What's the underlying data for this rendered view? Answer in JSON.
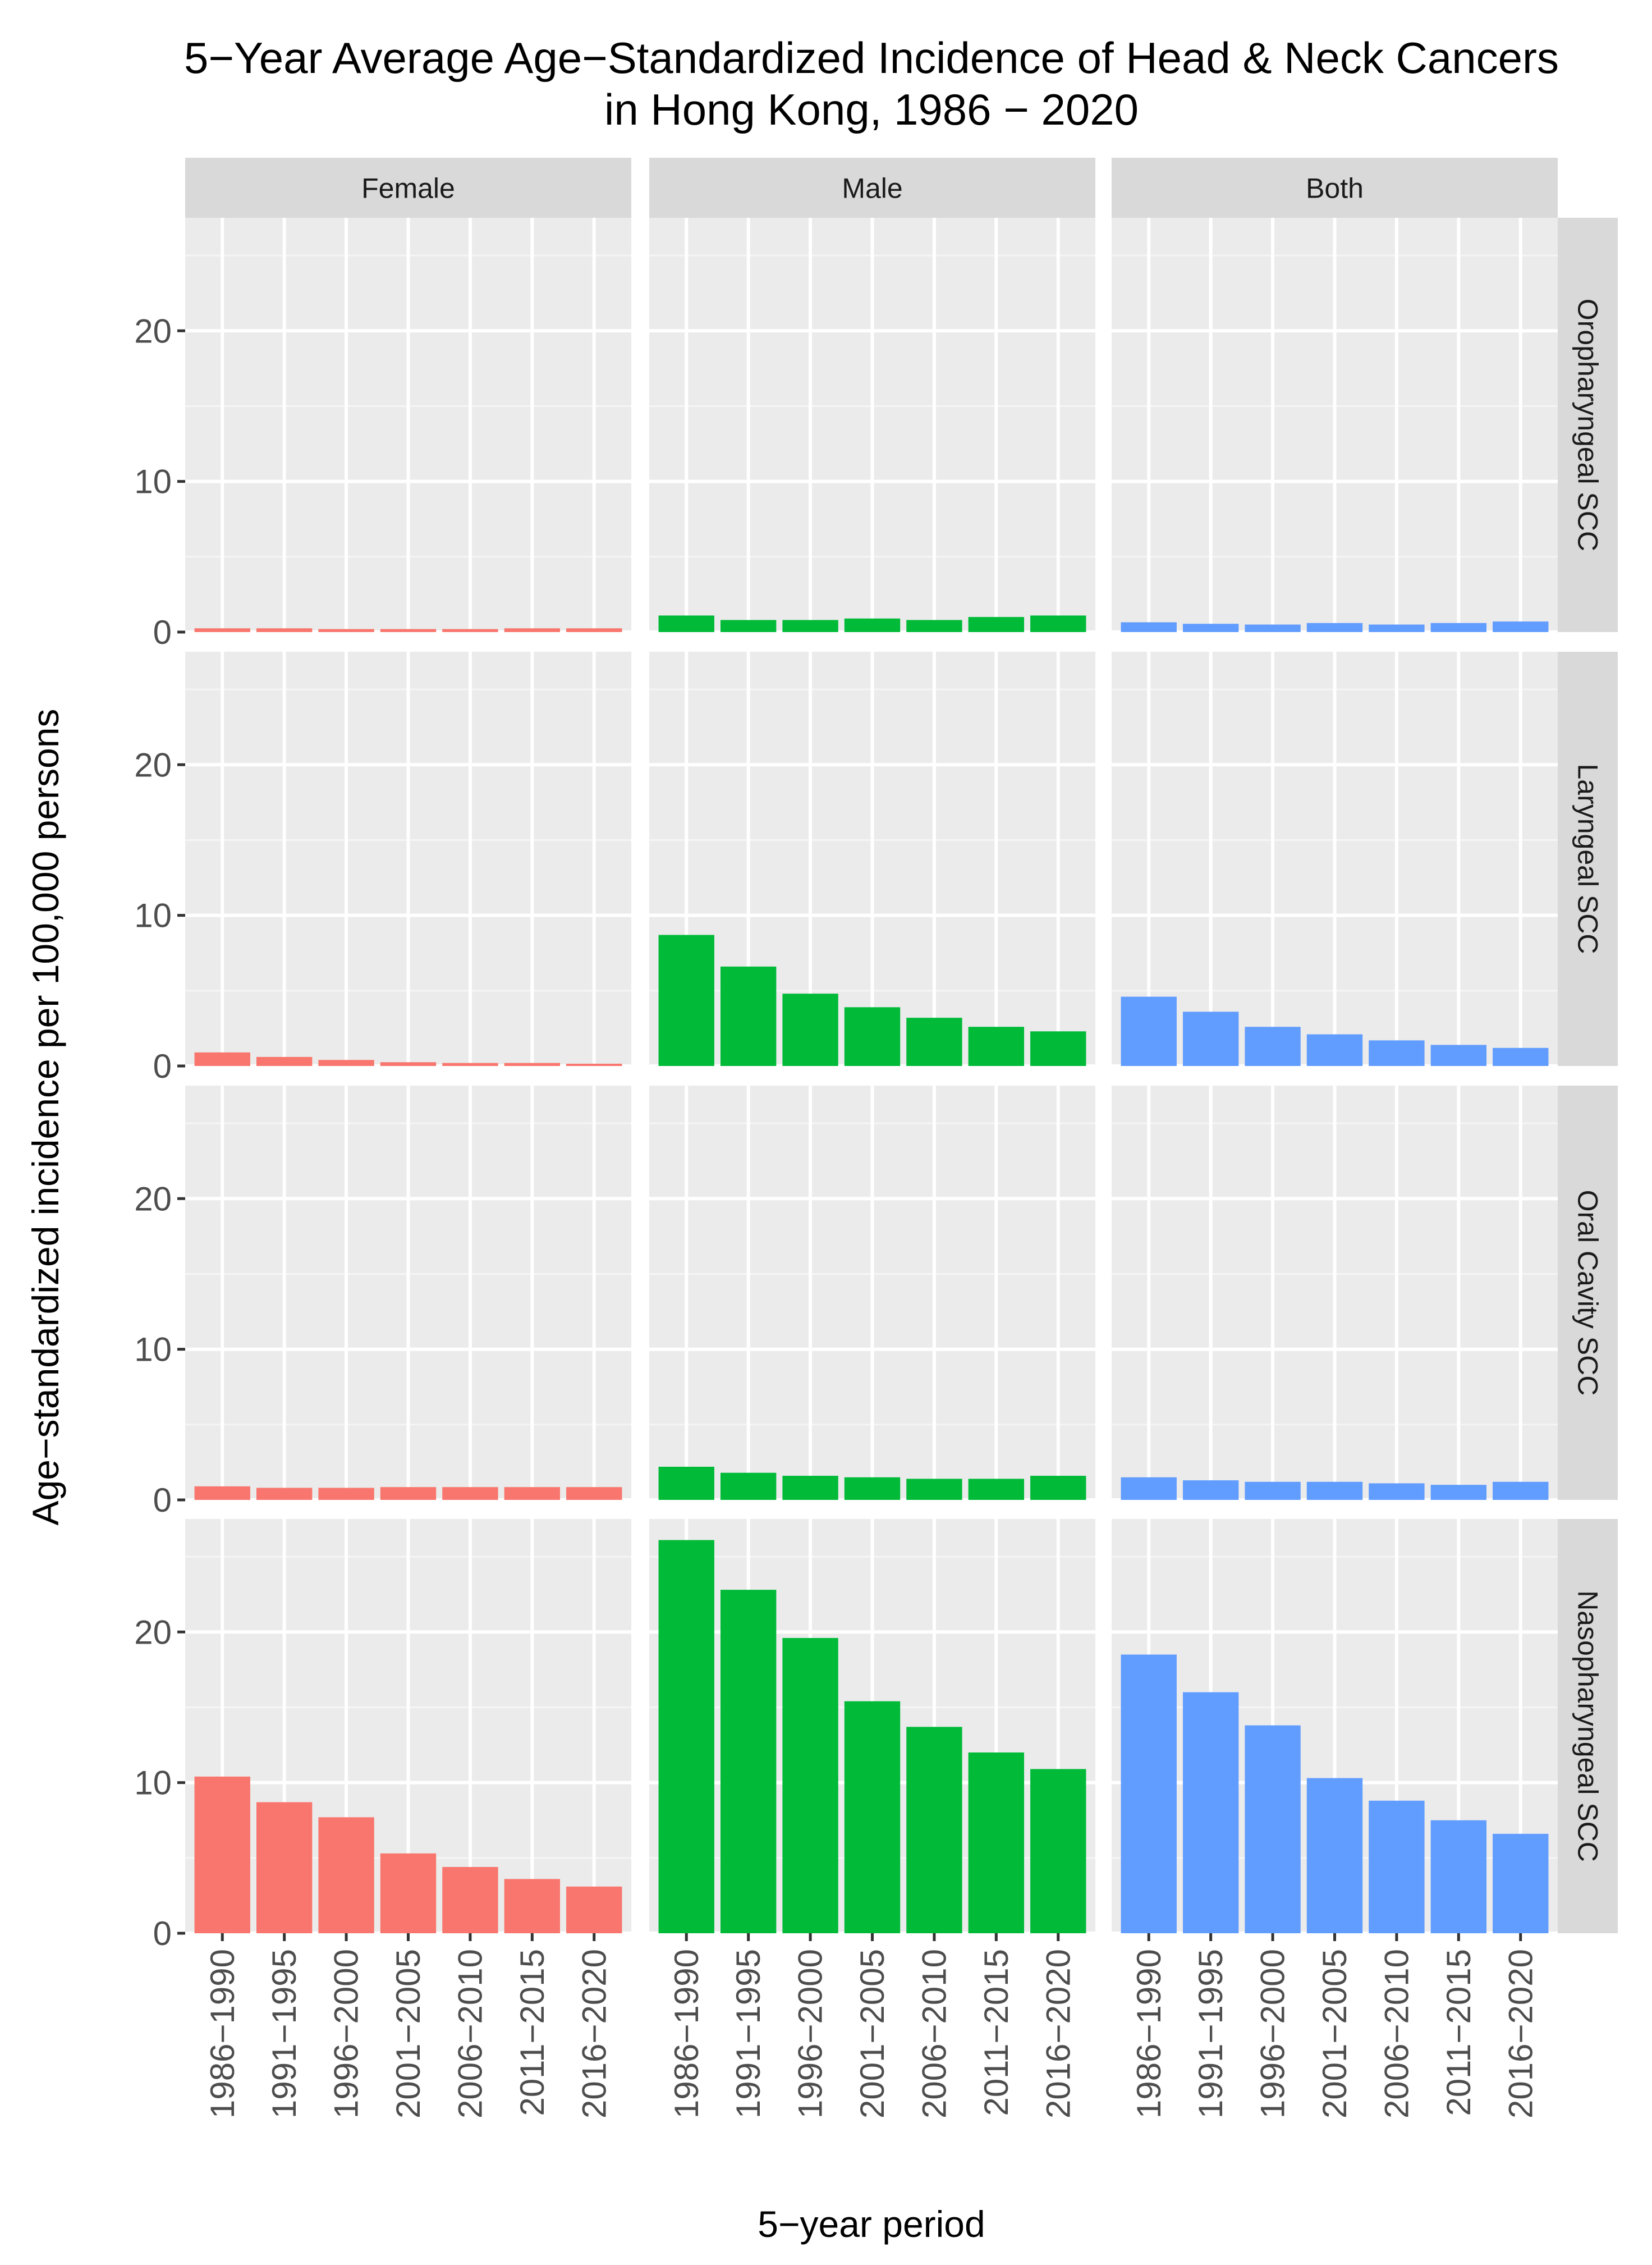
{
  "chart_data": {
    "type": "bar",
    "title": "5−Year Average Age−Standardized Incidence of Head & Neck Cancers in Hong Kong, 1986 − 2020",
    "title_lines": [
      "5−Year Average Age−Standardized Incidence of Head & Neck Cancers",
      "in Hong Kong, 1986 − 2020"
    ],
    "xlabel": "5−year period",
    "ylabel": "Age−standardized incidence per 100,000 persons",
    "categories": [
      "1986−1990",
      "1991−1995",
      "1996−2000",
      "2001−2005",
      "2006−2010",
      "2011−2015",
      "2016−2020"
    ],
    "y_ticks": [
      0,
      10,
      20
    ],
    "ylim": [
      0,
      27.5
    ],
    "grid": true,
    "legend": "none",
    "facet_columns": [
      {
        "label": "Female",
        "color": "#F8766D"
      },
      {
        "label": "Male",
        "color": "#00BA38"
      },
      {
        "label": "Both",
        "color": "#619CFF"
      }
    ],
    "facet_rows": [
      "Oropharyngeal SCC",
      "Laryngeal SCC",
      "Oral Cavity SCC",
      "Nasopharyngeal SCC"
    ],
    "panels": [
      {
        "row": "Oropharyngeal SCC",
        "column": "Female",
        "values": [
          0.25,
          0.25,
          0.2,
          0.2,
          0.2,
          0.25,
          0.25
        ]
      },
      {
        "row": "Oropharyngeal SCC",
        "column": "Male",
        "values": [
          1.1,
          0.8,
          0.8,
          0.9,
          0.8,
          1.0,
          1.1
        ]
      },
      {
        "row": "Oropharyngeal SCC",
        "column": "Both",
        "values": [
          0.65,
          0.55,
          0.5,
          0.6,
          0.5,
          0.6,
          0.7
        ]
      },
      {
        "row": "Laryngeal SCC",
        "column": "Female",
        "values": [
          0.9,
          0.6,
          0.4,
          0.25,
          0.2,
          0.2,
          0.15
        ]
      },
      {
        "row": "Laryngeal SCC",
        "column": "Male",
        "values": [
          8.7,
          6.6,
          4.8,
          3.9,
          3.2,
          2.6,
          2.3
        ]
      },
      {
        "row": "Laryngeal SCC",
        "column": "Both",
        "values": [
          4.6,
          3.6,
          2.6,
          2.1,
          1.7,
          1.4,
          1.2
        ]
      },
      {
        "row": "Oral Cavity SCC",
        "column": "Female",
        "values": [
          0.9,
          0.8,
          0.8,
          0.85,
          0.85,
          0.85,
          0.85
        ]
      },
      {
        "row": "Oral Cavity SCC",
        "column": "Male",
        "values": [
          2.2,
          1.8,
          1.6,
          1.5,
          1.4,
          1.4,
          1.6
        ]
      },
      {
        "row": "Oral Cavity SCC",
        "column": "Both",
        "values": [
          1.5,
          1.3,
          1.2,
          1.2,
          1.1,
          1.0,
          1.2
        ]
      },
      {
        "row": "Nasopharyngeal SCC",
        "column": "Female",
        "values": [
          10.4,
          8.7,
          7.7,
          5.3,
          4.4,
          3.6,
          3.1
        ]
      },
      {
        "row": "Nasopharyngeal SCC",
        "column": "Male",
        "values": [
          26.1,
          22.8,
          19.6,
          15.4,
          13.7,
          12.0,
          10.9
        ]
      },
      {
        "row": "Nasopharyngeal SCC",
        "column": "Both",
        "values": [
          18.5,
          16.0,
          13.8,
          10.3,
          8.8,
          7.5,
          6.6
        ]
      }
    ]
  }
}
